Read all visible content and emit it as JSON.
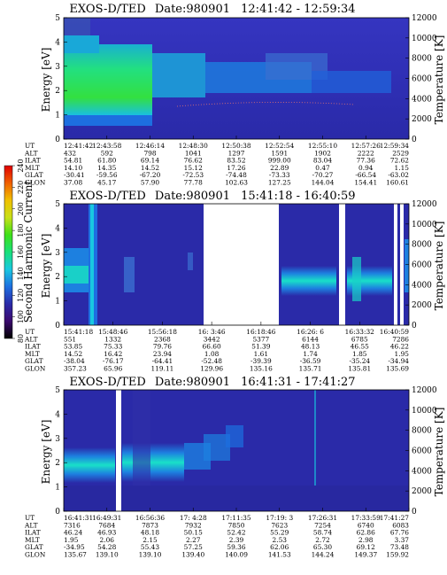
{
  "colorbar": {
    "label": "Second Harmonic Current",
    "ticks": [
      "80",
      "100",
      "120",
      "140",
      "160",
      "180",
      "200",
      "220",
      "240"
    ],
    "stops": [
      "#000000",
      "#3b0a6e",
      "#2a2aa8",
      "#1d6fe0",
      "#19c8e0",
      "#19e07a",
      "#3ee019",
      "#c8e019",
      "#f0c000",
      "#f06000",
      "#e00000"
    ]
  },
  "chart_data": [
    {
      "type": "heatmap",
      "title": "EXOS-D/TED",
      "date": "Date:980901",
      "time_range": "12:41:42 - 12:59:34",
      "ylabel": "Energy [eV]",
      "y2label": "Temperature [K]",
      "ylim": [
        0,
        5
      ],
      "y2lim": [
        0,
        12000
      ],
      "y_ticks": [
        "0",
        "1",
        "2",
        "3",
        "4",
        "5"
      ],
      "y2_ticks": [
        "0",
        "2000",
        "4000",
        "6000",
        "8000",
        "10000",
        "12000"
      ],
      "row_labels": [
        "UT",
        "ALT",
        "ILAT",
        "MLT",
        "GLAT",
        "GLON"
      ],
      "columns": [
        [
          "12:41:42",
          "432",
          "54.81",
          "14.10",
          "-30.41",
          "37.08"
        ],
        [
          "12:43:58",
          "592",
          "61.80",
          "14.35",
          "-59.56",
          "45.17"
        ],
        [
          "12:46:14",
          "798",
          "69.14",
          "14.52",
          "-67.20",
          "57.90"
        ],
        [
          "12:48:30",
          "1041",
          "76.62",
          "15.12",
          "-72.53",
          "77.78"
        ],
        [
          "12:50:38",
          "1297",
          "83.52",
          "17.26",
          "-74.48",
          "102.63"
        ],
        [
          "12:52:54",
          "1591",
          "999.00",
          "22.89",
          "-73.33",
          "127.25"
        ],
        [
          "12:55:10",
          "1902",
          "83.04",
          "0.47",
          "-70.27",
          "144.04"
        ],
        [
          "12:57:26",
          "2222",
          "77.36",
          "0.94",
          "-66.54",
          "154.41"
        ],
        [
          "12:59:34",
          "2529",
          "72.62",
          "1.15",
          "-63.02",
          "160.61"
        ]
      ]
    },
    {
      "type": "heatmap",
      "title": "EXOS-D/TED",
      "date": "Date:980901",
      "time_range": "15:41:18 - 16:40:59",
      "ylabel": "Energy [eV]",
      "y2label": "Temperature [K]",
      "ylim": [
        0,
        5
      ],
      "y2lim": [
        0,
        12000
      ],
      "y_ticks": [
        "0",
        "1",
        "2",
        "3",
        "4",
        "5"
      ],
      "y2_ticks": [
        "0",
        "2000",
        "4000",
        "6000",
        "8000",
        "10000",
        "12000"
      ],
      "row_labels": [
        "UT",
        "ALT",
        "ILAT",
        "MLT",
        "GLAT",
        "GLON"
      ],
      "columns": [
        [
          "15:41:18",
          "551",
          "53.85",
          "14.52",
          "-38.04",
          "357.23"
        ],
        [
          "15:48:46",
          "1332",
          "75.33",
          "16.42",
          "-76.17",
          "65.96"
        ],
        [
          "15:56:18",
          "2368",
          "79.76",
          "23.94",
          "-64.41",
          "119.11"
        ],
        [
          "16: 3:46",
          "3442",
          "66.60",
          "1.08",
          "-52.48",
          "129.96"
        ],
        [
          "16:18:46",
          "5377",
          "51.39",
          "1.61",
          "-39.39",
          "135.16"
        ],
        [
          "16:26: 6",
          "6144",
          "48.13",
          "1.74",
          "-36.59",
          "135.71"
        ],
        [
          "16:33:32",
          "6785",
          "46.55",
          "1.85",
          "-35.24",
          "135.81"
        ],
        [
          "16:40:59",
          "7286",
          "46.22",
          "1.95",
          "-34.94",
          "135.69"
        ]
      ]
    },
    {
      "type": "heatmap",
      "title": "EXOS-D/TED",
      "date": "Date:980901",
      "time_range": "16:41:31 - 17:41:27",
      "ylabel": "Energy [eV]",
      "y2label": "Temperature [K]",
      "ylim": [
        0,
        5
      ],
      "y2lim": [
        0,
        12000
      ],
      "y_ticks": [
        "0",
        "1",
        "2",
        "3",
        "4",
        "5"
      ],
      "y2_ticks": [
        "0",
        "2000",
        "4000",
        "6000",
        "8000",
        "10000",
        "12000"
      ],
      "row_labels": [
        "UT",
        "ALT",
        "ILAT",
        "MLT",
        "GLAT",
        "GLON"
      ],
      "columns": [
        [
          "16:41:31",
          "7316",
          "46.24",
          "1.95",
          "-34.95",
          "135.67"
        ],
        [
          "16:49:31",
          "7684",
          "46.93",
          "2.06",
          "54.28",
          "139.10"
        ],
        [
          "16:56:36",
          "7873",
          "48.18",
          "2.15",
          "55.43",
          "139.10"
        ],
        [
          "17: 4:28",
          "7932",
          "50.15",
          "2.27",
          "57.25",
          "139.40"
        ],
        [
          "17:11:35",
          "7850",
          "52.42",
          "2.39",
          "59.36",
          "140.09"
        ],
        [
          "17:19: 3",
          "7623",
          "55.29",
          "2.53",
          "62.06",
          "141.53"
        ],
        [
          "17:26:31",
          "7254",
          "58.74",
          "2.72",
          "65.30",
          "144.24"
        ],
        [
          "17:33:59",
          "6740",
          "62.86",
          "2.98",
          "69.12",
          "149.37"
        ],
        [
          "17:41:27",
          "6083",
          "67.76",
          "3.37",
          "73.48",
          "159.92"
        ]
      ]
    }
  ]
}
